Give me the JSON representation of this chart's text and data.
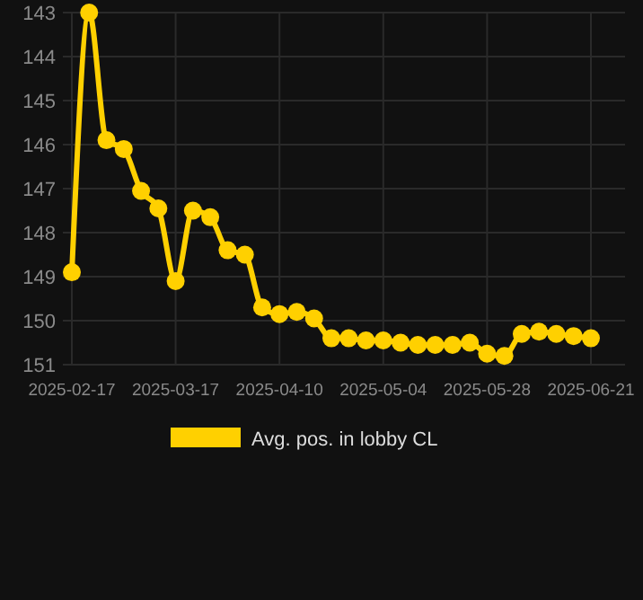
{
  "chart_data": {
    "type": "line",
    "categories": [
      "2025-02-17",
      null,
      null,
      null,
      null,
      null,
      "2025-03-17",
      null,
      null,
      null,
      null,
      null,
      "2025-04-10",
      null,
      null,
      null,
      null,
      null,
      "2025-05-04",
      null,
      null,
      null,
      null,
      null,
      "2025-05-28",
      null,
      null,
      null,
      null,
      null,
      "2025-06-21"
    ],
    "series": [
      {
        "name": "Avg. pos. in lobby CL",
        "color": "#ffd000",
        "values": [
          148.9,
          143.0,
          145.9,
          146.1,
          147.05,
          147.45,
          149.1,
          147.5,
          147.65,
          148.4,
          148.5,
          149.7,
          149.85,
          149.8,
          149.95,
          150.4,
          150.4,
          150.45,
          150.45,
          150.5,
          150.55,
          150.55,
          150.55,
          150.5,
          150.75,
          150.8,
          150.3,
          150.25,
          150.3,
          150.35,
          150.4
        ]
      }
    ],
    "ylim": [
      151,
      143
    ],
    "yticks": [
      143,
      144,
      145,
      146,
      147,
      148,
      149,
      150,
      151
    ],
    "grid": true,
    "legend": "bottom",
    "marker": "circle",
    "line_style": "solid"
  }
}
